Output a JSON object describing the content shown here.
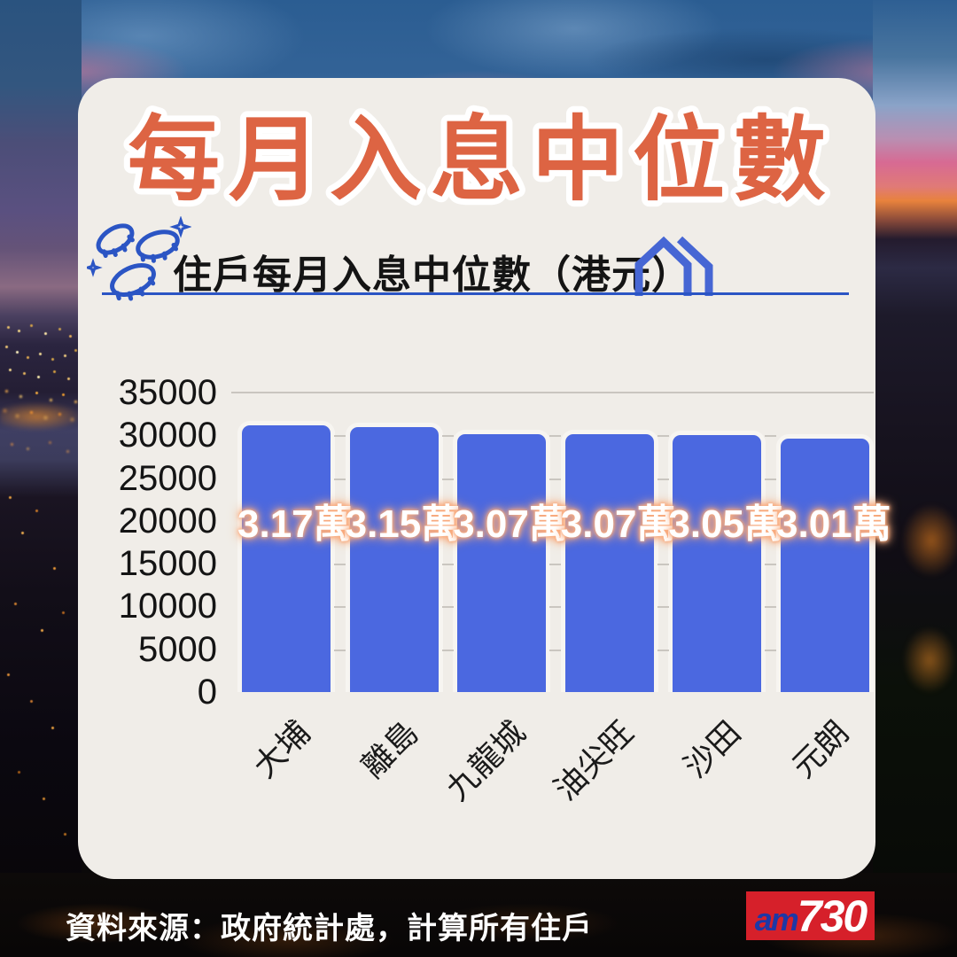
{
  "header": {
    "title": "每月入息中位數"
  },
  "subtitle": {
    "text": "住戶每月入息中位數（港元）",
    "left_icon": "coins-icon",
    "right_icon": "house-icon"
  },
  "chart_data": {
    "type": "bar",
    "title": "住戶每月入息中位數（港元）",
    "categories": [
      "大埔",
      "離島",
      "九龍城",
      "油尖旺",
      "沙田",
      "元朗"
    ],
    "values": [
      31700,
      31500,
      30700,
      30700,
      30500,
      30100
    ],
    "bar_labels": [
      "3.17萬",
      "3.15萬",
      "3.07萬",
      "3.07萬",
      "3.05萬",
      "3.01萬"
    ],
    "xlabel": "",
    "ylabel": "",
    "ylim": [
      0,
      35000
    ],
    "yticks": [
      0,
      5000,
      10000,
      15000,
      20000,
      25000,
      30000,
      35000
    ],
    "grid": true,
    "legend": "none",
    "xtick_rotation_deg": 45
  },
  "footer": {
    "source": "資料來源：政府統計處，計算所有住戶"
  },
  "logo": {
    "am": "am",
    "number": "730"
  },
  "colors": {
    "title": "#dd6443",
    "title_outline": "#ffffff",
    "card_bg": "#f0ede8",
    "bar": "#4b68e0",
    "bar_edge": "#f7f5f1",
    "bar_label_text": "#ffffff",
    "bar_label_glow": "#f9ab7e",
    "accent_blue": "#2b55c4",
    "gridline": "#c9c5bf",
    "logo_bg": "#d6202a",
    "logo_am": "#1e38a6",
    "logo_number": "#ffffff"
  }
}
